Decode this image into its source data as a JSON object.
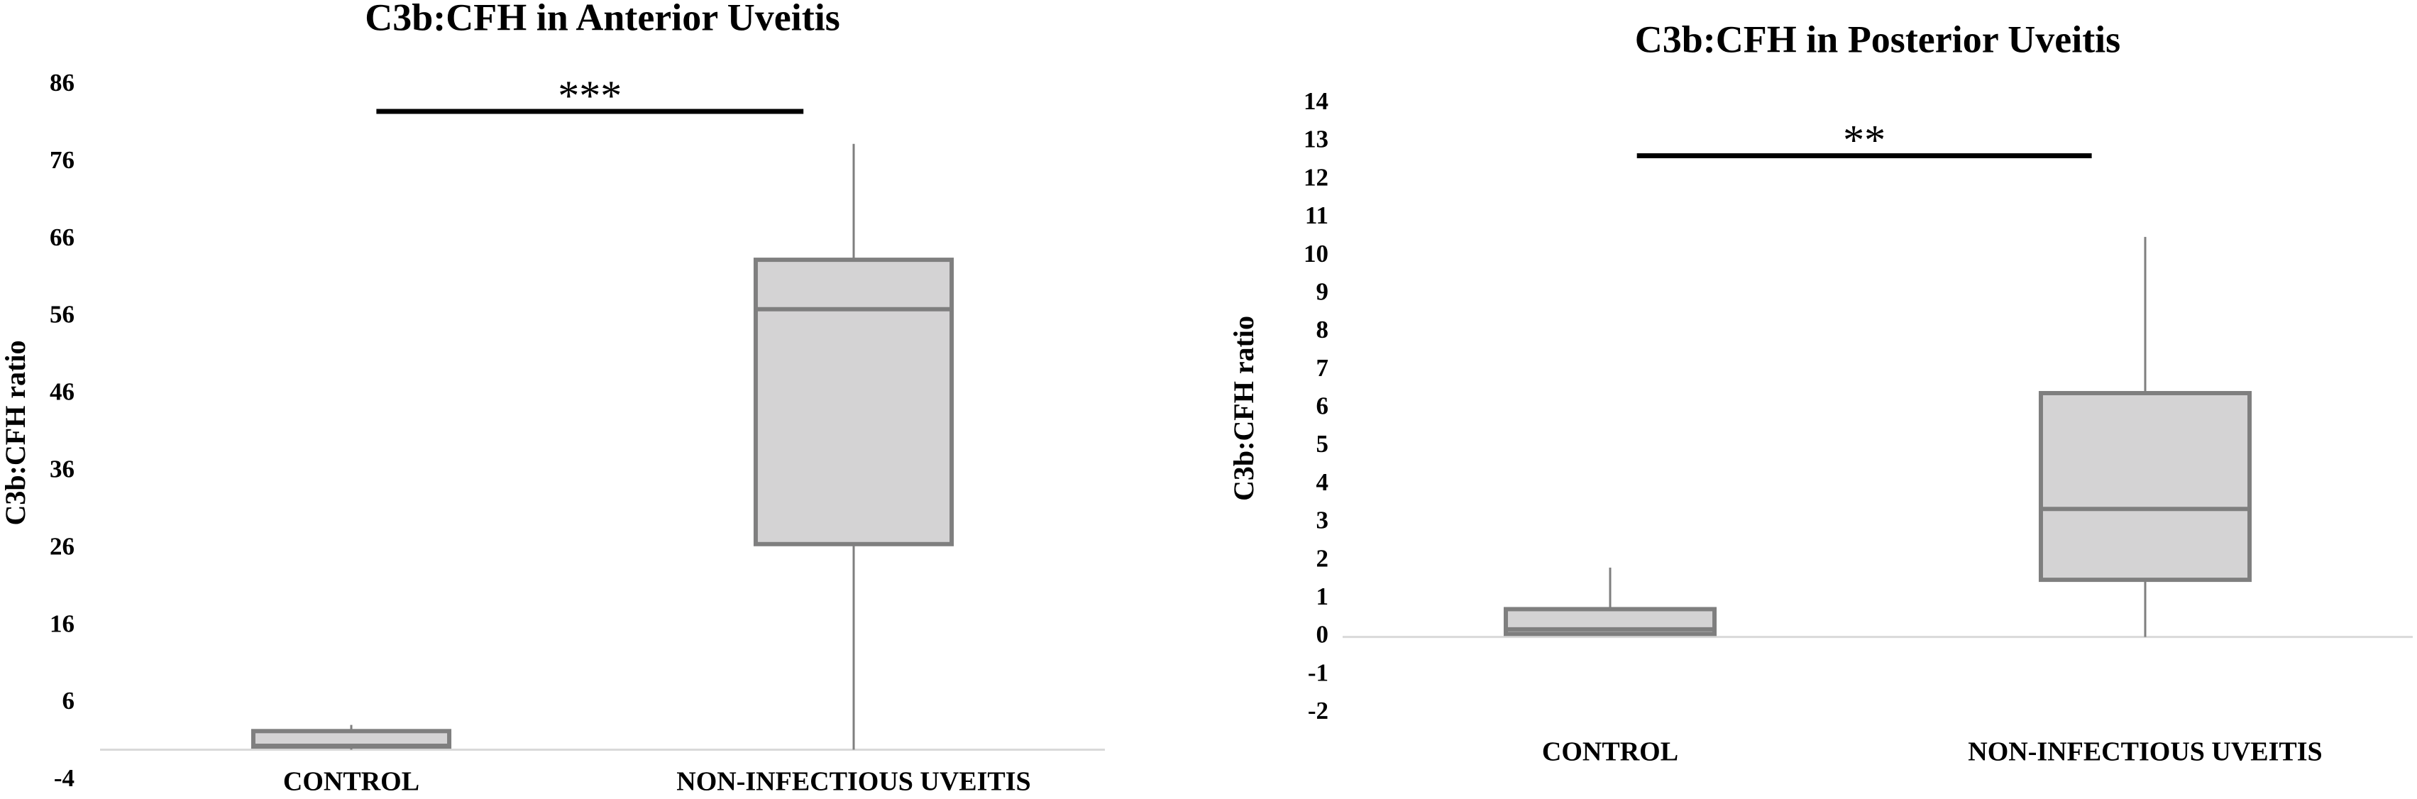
{
  "chart_data": [
    {
      "type": "box",
      "title": "C3b:CFH in Anterior Uveitis",
      "y_label": "C3b:CFH ratio",
      "categories": [
        "CONTROL",
        "NON-INFECTIOUS UVEITIS"
      ],
      "boxes": [
        {
          "min": 0,
          "q1": 0.4,
          "median": 0.5,
          "q3": 2.4,
          "max": 3.2
        },
        {
          "min": 0,
          "q1": 26.6,
          "median": 57,
          "q3": 63.4,
          "max": 78.4
        }
      ],
      "fill": "#d4d3d4",
      "stroke": "#7f7f7f",
      "ylim": [
        -4,
        86
      ],
      "yticks": [
        -4,
        6,
        16,
        26,
        36,
        46,
        56,
        66,
        76,
        86
      ],
      "significance": {
        "label": "***",
        "value": 82.6
      }
    },
    {
      "type": "box",
      "title": "C3b:CFH in Posterior Uveitis",
      "y_label": "C3b:CFH ratio",
      "categories": [
        "CONTROL",
        "NON-INFECTIOUS UVEITIS"
      ],
      "boxes": [
        {
          "min": 0.05,
          "q1": 0.08,
          "median": 0.2,
          "q3": 0.73,
          "max": 1.82
        },
        {
          "min": 0,
          "q1": 1.5,
          "median": 3.36,
          "q3": 6.4,
          "max": 10.5
        }
      ],
      "fill": "#d4d3d4",
      "stroke": "#7f7f7f",
      "ylim": [
        -2,
        14
      ],
      "yticks": [
        -2,
        -1,
        0,
        1,
        2,
        3,
        4,
        5,
        6,
        7,
        8,
        9,
        10,
        11,
        12,
        13,
        14
      ],
      "significance": {
        "label": "**",
        "value": 12.63
      }
    }
  ]
}
